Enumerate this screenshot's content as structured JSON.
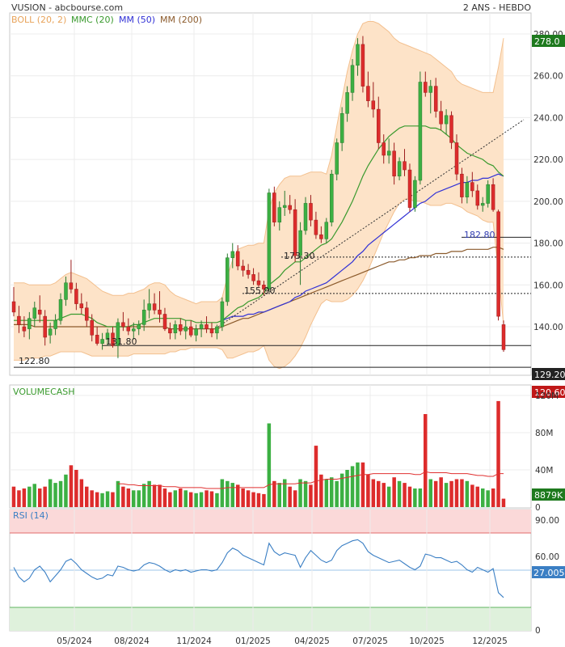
{
  "header": {
    "title": "VUSION - abcbourse.com",
    "period": "2 ANS - HEBDO"
  },
  "legend": {
    "boll": "BOLL (20, 2)",
    "mmc": "MMC (20)",
    "mm50": "MM (50)",
    "mm200": "MM (200)",
    "volume": "VOLUMECASH",
    "rsi": "RSI (14)"
  },
  "colors": {
    "up": "#3cb043",
    "down": "#dd2c2c",
    "boll_fill": "#fde3c8",
    "boll_line": "#f3c08f",
    "mmc": "#3a9a2e",
    "mm50": "#3232d6",
    "mm200": "#8b5a2b",
    "rsi_line": "#3b7fc4",
    "current_price_bg": "#1e7a1e",
    "last_price_bg": "#c01818"
  },
  "price_axis": {
    "ticks": [
      "280.00",
      "260.00",
      "240.00",
      "220.00",
      "200.00",
      "180.00",
      "160.00",
      "140.00"
    ]
  },
  "volume_axis": {
    "ticks": [
      "120M",
      "80M",
      "40M",
      "0"
    ]
  },
  "rsi_axis": {
    "ticks": [
      "90.00",
      "60.00",
      "0"
    ]
  },
  "x_axis": {
    "labels": [
      "05/2024",
      "08/2024",
      "11/2024",
      "01/2025",
      "04/2025",
      "07/2025",
      "10/2025",
      "12/2025"
    ]
  },
  "badges": {
    "boll_upper": "278.0",
    "last_price": "129.20",
    "low_support": "120.60",
    "volume_last": "8879K",
    "rsi_last": "27.005"
  },
  "annotations": {
    "level_182": "182.80",
    "level_173": "173.30",
    "level_155": "155.90",
    "level_131": "131.80",
    "level_122": "122.80"
  },
  "chart_data": {
    "type": "candlestick",
    "ylim": [
      117,
      284
    ],
    "candles": [
      {
        "o": 152,
        "h": 159,
        "l": 145,
        "c": 147
      },
      {
        "o": 145,
        "h": 150,
        "l": 137,
        "c": 141
      },
      {
        "o": 140,
        "h": 145,
        "l": 135,
        "c": 138
      },
      {
        "o": 139,
        "h": 147,
        "l": 134,
        "c": 144
      },
      {
        "o": 144,
        "h": 152,
        "l": 140,
        "c": 149
      },
      {
        "o": 148,
        "h": 155,
        "l": 142,
        "c": 146
      },
      {
        "o": 145,
        "h": 148,
        "l": 131,
        "c": 135
      },
      {
        "o": 136,
        "h": 142,
        "l": 132,
        "c": 139
      },
      {
        "o": 139,
        "h": 146,
        "l": 136,
        "c": 143
      },
      {
        "o": 143,
        "h": 156,
        "l": 141,
        "c": 153
      },
      {
        "o": 153,
        "h": 164,
        "l": 150,
        "c": 161
      },
      {
        "o": 161,
        "h": 172,
        "l": 156,
        "c": 158
      },
      {
        "o": 158,
        "h": 161,
        "l": 148,
        "c": 151
      },
      {
        "o": 151,
        "h": 156,
        "l": 146,
        "c": 149
      },
      {
        "o": 149,
        "h": 152,
        "l": 140,
        "c": 143
      },
      {
        "o": 143,
        "h": 146,
        "l": 133,
        "c": 136
      },
      {
        "o": 136,
        "h": 140,
        "l": 131,
        "c": 132
      },
      {
        "o": 132,
        "h": 137,
        "l": 129,
        "c": 134
      },
      {
        "o": 134,
        "h": 139,
        "l": 131,
        "c": 137
      },
      {
        "o": 137,
        "h": 140,
        "l": 130,
        "c": 131
      },
      {
        "o": 131,
        "h": 144,
        "l": 125,
        "c": 142
      },
      {
        "o": 142,
        "h": 147,
        "l": 138,
        "c": 140
      },
      {
        "o": 140,
        "h": 144,
        "l": 136,
        "c": 138
      },
      {
        "o": 138,
        "h": 142,
        "l": 134,
        "c": 139
      },
      {
        "o": 139,
        "h": 143,
        "l": 136,
        "c": 141
      },
      {
        "o": 141,
        "h": 153,
        "l": 138,
        "c": 148
      },
      {
        "o": 148,
        "h": 158,
        "l": 144,
        "c": 151
      },
      {
        "o": 151,
        "h": 156,
        "l": 146,
        "c": 148
      },
      {
        "o": 148,
        "h": 157,
        "l": 142,
        "c": 146
      },
      {
        "o": 146,
        "h": 149,
        "l": 138,
        "c": 139
      },
      {
        "o": 139,
        "h": 142,
        "l": 134,
        "c": 137
      },
      {
        "o": 137,
        "h": 143,
        "l": 134,
        "c": 141
      },
      {
        "o": 141,
        "h": 144,
        "l": 136,
        "c": 138
      },
      {
        "o": 138,
        "h": 143,
        "l": 134,
        "c": 140
      },
      {
        "o": 140,
        "h": 143,
        "l": 135,
        "c": 136
      },
      {
        "o": 136,
        "h": 141,
        "l": 133,
        "c": 139
      },
      {
        "o": 139,
        "h": 143,
        "l": 135,
        "c": 141
      },
      {
        "o": 141,
        "h": 145,
        "l": 137,
        "c": 139
      },
      {
        "o": 139,
        "h": 142,
        "l": 135,
        "c": 137
      },
      {
        "o": 137,
        "h": 141,
        "l": 134,
        "c": 140
      },
      {
        "o": 140,
        "h": 154,
        "l": 138,
        "c": 152
      },
      {
        "o": 152,
        "h": 175,
        "l": 150,
        "c": 173
      },
      {
        "o": 173,
        "h": 180,
        "l": 168,
        "c": 176
      },
      {
        "o": 176,
        "h": 179,
        "l": 167,
        "c": 169
      },
      {
        "o": 169,
        "h": 172,
        "l": 164,
        "c": 167
      },
      {
        "o": 167,
        "h": 170,
        "l": 163,
        "c": 165
      },
      {
        "o": 165,
        "h": 168,
        "l": 160,
        "c": 162
      },
      {
        "o": 162,
        "h": 166,
        "l": 159,
        "c": 160
      },
      {
        "o": 160,
        "h": 162,
        "l": 155,
        "c": 158
      },
      {
        "o": 158,
        "h": 206,
        "l": 157,
        "c": 204
      },
      {
        "o": 204,
        "h": 207,
        "l": 188,
        "c": 190
      },
      {
        "o": 190,
        "h": 200,
        "l": 186,
        "c": 197
      },
      {
        "o": 197,
        "h": 205,
        "l": 193,
        "c": 198
      },
      {
        "o": 198,
        "h": 203,
        "l": 194,
        "c": 196
      },
      {
        "o": 196,
        "h": 201,
        "l": 171,
        "c": 174
      },
      {
        "o": 174,
        "h": 190,
        "l": 160,
        "c": 186
      },
      {
        "o": 186,
        "h": 202,
        "l": 184,
        "c": 199
      },
      {
        "o": 199,
        "h": 203,
        "l": 188,
        "c": 191
      },
      {
        "o": 191,
        "h": 195,
        "l": 182,
        "c": 184
      },
      {
        "o": 184,
        "h": 188,
        "l": 180,
        "c": 182
      },
      {
        "o": 182,
        "h": 192,
        "l": 180,
        "c": 190
      },
      {
        "o": 190,
        "h": 215,
        "l": 188,
        "c": 213
      },
      {
        "o": 213,
        "h": 230,
        "l": 210,
        "c": 228
      },
      {
        "o": 228,
        "h": 245,
        "l": 224,
        "c": 242
      },
      {
        "o": 242,
        "h": 255,
        "l": 238,
        "c": 252
      },
      {
        "o": 252,
        "h": 268,
        "l": 248,
        "c": 265
      },
      {
        "o": 265,
        "h": 278,
        "l": 260,
        "c": 275
      },
      {
        "o": 275,
        "h": 279,
        "l": 252,
        "c": 255
      },
      {
        "o": 255,
        "h": 262,
        "l": 245,
        "c": 248
      },
      {
        "o": 248,
        "h": 257,
        "l": 240,
        "c": 244
      },
      {
        "o": 244,
        "h": 250,
        "l": 225,
        "c": 228
      },
      {
        "o": 228,
        "h": 232,
        "l": 218,
        "c": 222
      },
      {
        "o": 222,
        "h": 230,
        "l": 218,
        "c": 224
      },
      {
        "o": 224,
        "h": 228,
        "l": 208,
        "c": 212
      },
      {
        "o": 212,
        "h": 221,
        "l": 210,
        "c": 219
      },
      {
        "o": 219,
        "h": 225,
        "l": 212,
        "c": 215
      },
      {
        "o": 215,
        "h": 218,
        "l": 195,
        "c": 197
      },
      {
        "o": 197,
        "h": 212,
        "l": 195,
        "c": 210
      },
      {
        "o": 210,
        "h": 262,
        "l": 208,
        "c": 257
      },
      {
        "o": 257,
        "h": 262,
        "l": 250,
        "c": 252
      },
      {
        "o": 252,
        "h": 258,
        "l": 242,
        "c": 255
      },
      {
        "o": 255,
        "h": 259,
        "l": 240,
        "c": 243
      },
      {
        "o": 243,
        "h": 248,
        "l": 234,
        "c": 237
      },
      {
        "o": 237,
        "h": 244,
        "l": 232,
        "c": 241
      },
      {
        "o": 241,
        "h": 243,
        "l": 225,
        "c": 228
      },
      {
        "o": 228,
        "h": 232,
        "l": 210,
        "c": 213
      },
      {
        "o": 213,
        "h": 216,
        "l": 199,
        "c": 202
      },
      {
        "o": 202,
        "h": 212,
        "l": 199,
        "c": 209
      },
      {
        "o": 209,
        "h": 214,
        "l": 202,
        "c": 205
      },
      {
        "o": 205,
        "h": 208,
        "l": 196,
        "c": 198
      },
      {
        "o": 198,
        "h": 202,
        "l": 195,
        "c": 199
      },
      {
        "o": 199,
        "h": 210,
        "l": 197,
        "c": 208
      },
      {
        "o": 208,
        "h": 211,
        "l": 195,
        "c": 196
      },
      {
        "o": 195,
        "h": 196,
        "l": 143,
        "c": 145
      },
      {
        "o": 141,
        "h": 143,
        "l": 128,
        "c": 129
      }
    ],
    "boll_upper": [
      161,
      161,
      161,
      160,
      160,
      160,
      160,
      160,
      161,
      163,
      165,
      166,
      165,
      164,
      163,
      161,
      159,
      157,
      156,
      155,
      155,
      155,
      156,
      156,
      157,
      158,
      160,
      161,
      161,
      160,
      157,
      155,
      154,
      153,
      152,
      151,
      152,
      152,
      152,
      152,
      154,
      164,
      172,
      177,
      178,
      179,
      179,
      180,
      180,
      196,
      204,
      208,
      211,
      212,
      212,
      212,
      213,
      214,
      214,
      214,
      213,
      222,
      236,
      249,
      262,
      272,
      280,
      285,
      286,
      286,
      285,
      283,
      281,
      278,
      276,
      275,
      274,
      273,
      272,
      271,
      270,
      268,
      266,
      264,
      262,
      258,
      256,
      255,
      254,
      253,
      252,
      252,
      252,
      264,
      278
    ],
    "boll_lower": [
      124,
      124,
      124,
      125,
      125,
      125,
      126,
      126,
      127,
      128,
      128,
      128,
      128,
      128,
      127,
      126,
      126,
      126,
      126,
      126,
      126,
      126,
      126,
      127,
      127,
      127,
      127,
      127,
      127,
      127,
      128,
      128,
      129,
      129,
      130,
      130,
      130,
      130,
      130,
      130,
      129,
      125,
      125,
      126,
      127,
      128,
      128,
      129,
      131,
      124,
      121,
      120,
      121,
      123,
      126,
      130,
      135,
      141,
      146,
      151,
      153,
      152,
      152,
      152,
      153,
      155,
      158,
      162,
      167,
      173,
      179,
      185,
      190,
      195,
      199,
      201,
      201,
      200,
      200,
      199,
      198,
      198,
      198,
      199,
      199,
      198,
      197,
      195,
      194,
      193,
      191,
      190,
      190,
      166,
      141
    ],
    "mmc": [
      143,
      143,
      143,
      143,
      143,
      143,
      143,
      143,
      143,
      144,
      145,
      146,
      146,
      146,
      145,
      144,
      142,
      141,
      140,
      140,
      140,
      140,
      140,
      141,
      141,
      142,
      143,
      144,
      144,
      144,
      144,
      144,
      144,
      143,
      143,
      142,
      142,
      142,
      142,
      142,
      143,
      145,
      147,
      149,
      150,
      152,
      153,
      154,
      156,
      160,
      162,
      164,
      167,
      169,
      171,
      171,
      173,
      175,
      177,
      179,
      180,
      182,
      186,
      190,
      195,
      200,
      206,
      212,
      217,
      221,
      225,
      228,
      231,
      233,
      235,
      236,
      236,
      236,
      236,
      236,
      235,
      235,
      234,
      232,
      230,
      227,
      225,
      223,
      222,
      221,
      220,
      218,
      217,
      214,
      212
    ],
    "mm50": [
      null,
      null,
      null,
      null,
      null,
      null,
      null,
      null,
      null,
      null,
      null,
      null,
      null,
      null,
      null,
      null,
      null,
      null,
      null,
      null,
      null,
      null,
      null,
      null,
      null,
      null,
      null,
      null,
      null,
      null,
      null,
      null,
      null,
      null,
      null,
      null,
      null,
      null,
      null,
      null,
      143,
      144,
      145,
      145,
      145,
      146,
      146,
      147,
      147,
      148,
      149,
      150,
      151,
      152,
      154,
      155,
      157,
      158,
      159,
      160,
      161,
      163,
      165,
      167,
      169,
      171,
      174,
      176,
      179,
      181,
      183,
      185,
      187,
      189,
      191,
      193,
      195,
      197,
      199,
      200,
      202,
      204,
      205,
      206,
      207,
      208,
      209,
      209,
      210,
      210,
      211,
      211,
      212,
      213,
      212
    ],
    "mm200": [
      null,
      null,
      null,
      null,
      null,
      null,
      null,
      null,
      null,
      null,
      null,
      null,
      null,
      null,
      null,
      null,
      null,
      null,
      null,
      null,
      null,
      null,
      null,
      null,
      null,
      null,
      null,
      null,
      null,
      null,
      null,
      null,
      null,
      null,
      null,
      null,
      null,
      null,
      null,
      null,
      null,
      null,
      null,
      null,
      null,
      null,
      null,
      null,
      null,
      null,
      null,
      null,
      null,
      null,
      null,
      null,
      null,
      null,
      null,
      null,
      null,
      null,
      null,
      null,
      null,
      null,
      null,
      null,
      null,
      null,
      null,
      null,
      null,
      null,
      null,
      null,
      null,
      null,
      null,
      null,
      null,
      null,
      null,
      null,
      null,
      null,
      null,
      null,
      null,
      null,
      null,
      null,
      null,
      null,
      null
    ],
    "mm_long": [
      141,
      141,
      141,
      141,
      140,
      140,
      140,
      140,
      140,
      140,
      140,
      140,
      140,
      140,
      140,
      140,
      140,
      140,
      140,
      140,
      140,
      140,
      140,
      140,
      140,
      140,
      140,
      140,
      140,
      140,
      139,
      139,
      139,
      139,
      139,
      139,
      139,
      139,
      139,
      139,
      140,
      141,
      142,
      143,
      144,
      144,
      145,
      146,
      147,
      148,
      149,
      150,
      151,
      152,
      153,
      154,
      155,
      156,
      157,
      158,
      159,
      160,
      161,
      162,
      163,
      164,
      165,
      166,
      167,
      168,
      169,
      170,
      171,
      171,
      172,
      172,
      173,
      173,
      174,
      174,
      174,
      175,
      175,
      175,
      176,
      176,
      176,
      177,
      177,
      177,
      177,
      177,
      178,
      178,
      177
    ],
    "volume": [
      22,
      18,
      20,
      22,
      25,
      20,
      22,
      30,
      26,
      28,
      35,
      45,
      40,
      30,
      22,
      18,
      16,
      15,
      17,
      16,
      28,
      22,
      20,
      18,
      18,
      25,
      28,
      24,
      24,
      20,
      16,
      18,
      20,
      18,
      16,
      15,
      16,
      18,
      17,
      15,
      30,
      28,
      26,
      24,
      20,
      18,
      16,
      15,
      14,
      90,
      28,
      26,
      30,
      22,
      18,
      30,
      28,
      24,
      66,
      35,
      30,
      32,
      28,
      36,
      40,
      44,
      48,
      48,
      35,
      30,
      28,
      26,
      22,
      32,
      28,
      26,
      22,
      20,
      20,
      100,
      30,
      28,
      32,
      26,
      28,
      30,
      30,
      28,
      24,
      22,
      20,
      18,
      20,
      114,
      9
    ],
    "volume_ma": [
      null,
      null,
      null,
      null,
      null,
      null,
      null,
      null,
      null,
      null,
      null,
      null,
      null,
      null,
      null,
      null,
      null,
      null,
      null,
      null,
      25,
      25,
      24,
      24,
      23,
      23,
      23,
      23,
      23,
      22,
      22,
      22,
      21,
      21,
      21,
      21,
      21,
      20,
      20,
      20,
      20,
      21,
      21,
      21,
      21,
      21,
      21,
      21,
      21,
      24,
      25,
      25,
      25,
      25,
      25,
      26,
      26,
      26,
      28,
      29,
      30,
      30,
      30,
      31,
      32,
      33,
      34,
      35,
      35,
      36,
      36,
      36,
      36,
      36,
      36,
      36,
      36,
      35,
      35,
      38,
      37,
      37,
      37,
      37,
      36,
      36,
      36,
      36,
      35,
      34,
      34,
      33,
      33,
      36,
      36
    ],
    "rsi": [
      52,
      44,
      40,
      43,
      50,
      53,
      48,
      40,
      45,
      50,
      57,
      59,
      55,
      50,
      47,
      44,
      42,
      43,
      46,
      45,
      53,
      52,
      50,
      49,
      50,
      54,
      56,
      55,
      53,
      50,
      48,
      50,
      49,
      50,
      48,
      49,
      50,
      50,
      49,
      50,
      56,
      64,
      68,
      66,
      62,
      60,
      58,
      56,
      54,
      72,
      65,
      62,
      64,
      63,
      62,
      52,
      60,
      66,
      62,
      58,
      56,
      58,
      66,
      70,
      72,
      74,
      75,
      72,
      65,
      62,
      60,
      58,
      56,
      57,
      58,
      55,
      52,
      50,
      53,
      63,
      62,
      60,
      60,
      58,
      56,
      57,
      54,
      50,
      48,
      52,
      50,
      48,
      51,
      31,
      27
    ]
  }
}
